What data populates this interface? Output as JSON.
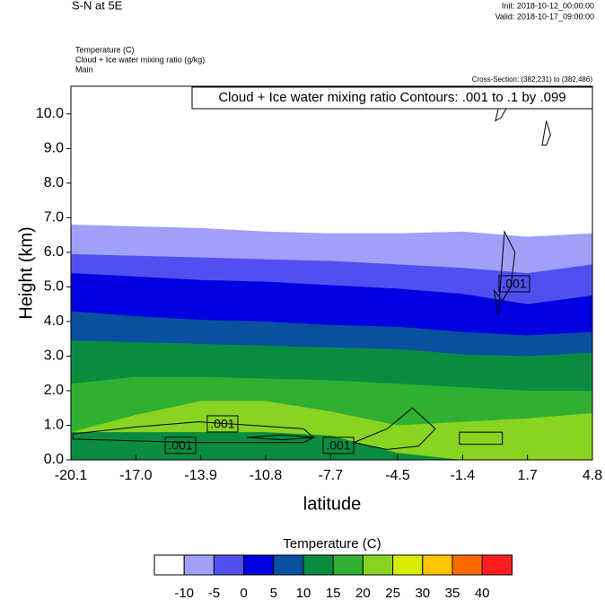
{
  "chart_data": {
    "type": "contour",
    "title": "S-N at 5E",
    "init": "Init: 2018-10-12_00:00:00",
    "valid": "Valid: 2018-10-17_09:00:00",
    "fields": [
      "Temperature   (C)",
      "Cloud + Ice water mixing ratio   (g/kg)",
      "Main"
    ],
    "cross_section": "Cross-Section: (382,231) to (382,486)",
    "contour_info": "Cloud + Ice water mixing ratio Contours: .001 to .1 by .099",
    "x_label": "latitude",
    "y_label": "Height (km)",
    "xlim": [
      -20.1,
      4.8
    ],
    "xticks": [
      -20.1,
      {
        "value": -17,
        "label": "-17.0"
      },
      -13.9,
      -10.8,
      -7.7,
      -4.5,
      -1.4,
      1.7,
      4.8
    ],
    "ylim": [
      0,
      10.8
    ],
    "yticks": [
      {
        "value": 0,
        "label": "0.0"
      },
      {
        "value": 1,
        "label": "1.0"
      },
      {
        "value": 2,
        "label": "2.0"
      },
      {
        "value": 3,
        "label": "3.0"
      },
      {
        "value": 4,
        "label": "4.0"
      },
      {
        "value": 5,
        "label": "5.0"
      },
      {
        "value": 6,
        "label": "6.0"
      },
      {
        "value": 7,
        "label": "7.0"
      },
      {
        "value": 8,
        "label": "8.0"
      },
      {
        "value": 9,
        "label": "9.0"
      },
      {
        "value": 10,
        "label": "10.0"
      }
    ],
    "x": [
      -20.1,
      -17,
      -13.9,
      -10.8,
      -7.7,
      -4.5,
      -1.4,
      1.7,
      4.8
    ],
    "regions": [
      {
        "color": "#a0a0f8",
        "top": [
          6.8,
          6.75,
          6.7,
          6.6,
          6.55,
          6.55,
          6.6,
          6.45,
          6.55
        ]
      },
      {
        "color": "#5050f0",
        "top": [
          5.95,
          5.9,
          5.85,
          5.8,
          5.75,
          5.65,
          5.55,
          5.4,
          5.65
        ]
      },
      {
        "color": "#0000e0",
        "top": [
          5.4,
          5.3,
          5.2,
          5.15,
          5.05,
          4.95,
          4.8,
          4.5,
          4.75
        ]
      },
      {
        "color": "#0a50a0",
        "top": [
          4.3,
          4.15,
          4.05,
          4.0,
          3.9,
          3.85,
          3.7,
          3.6,
          3.7
        ]
      },
      {
        "color": "#0a8c40",
        "top": [
          3.45,
          3.4,
          3.35,
          3.3,
          3.25,
          3.2,
          3.05,
          3.0,
          3.1
        ]
      },
      {
        "color": "#30b030",
        "top": [
          2.2,
          2.4,
          2.4,
          2.35,
          2.3,
          2.2,
          2.1,
          2.0,
          2.0
        ]
      },
      {
        "color": "#88d420",
        "top": [
          0.8,
          1.3,
          1.7,
          1.7,
          1.4,
          1.0,
          1.1,
          1.2,
          1.35
        ]
      },
      {
        "color": "#0a8c40",
        "top": [
          0.8,
          0.8,
          0.8,
          0.8,
          0.7,
          0.2,
          0,
          0,
          0
        ]
      }
    ],
    "contours": [
      {
        "x": [
          -20,
          -17,
          -14,
          -9,
          -8.5,
          -9,
          -14,
          -17,
          -20
        ],
        "y": [
          0.75,
          0.95,
          1.1,
          0.9,
          0.65,
          0.5,
          0.5,
          0.55,
          0.6
        ]
      },
      {
        "x": [
          -11.7,
          -10,
          -8.5,
          -10,
          -11.7
        ],
        "y": [
          0.65,
          0.72,
          0.65,
          0.58,
          0.65
        ]
      },
      {
        "x": [
          -6.6,
          -5,
          -3.8,
          -2.7,
          -3.5,
          -5,
          -6.6
        ],
        "y": [
          0.5,
          0.9,
          1.5,
          0.9,
          0.4,
          0.3,
          0.5
        ]
      },
      {
        "x": [
          -1.55,
          0.5,
          0.5,
          -1.55
        ],
        "y": [
          0.45,
          0.45,
          0.8,
          0.8
        ]
      },
      {
        "x": [
          0.3,
          0.6,
          1.1,
          0.9,
          0.5,
          0.1,
          0.3
        ],
        "y": [
          4.2,
          6.6,
          6.0,
          5.0,
          4.6,
          4.9,
          4.2
        ]
      },
      {
        "x": [
          0.17,
          0.45,
          0.73,
          0.45,
          0.17
        ],
        "y": [
          9.8,
          10.5,
          10.2,
          9.9,
          9.8
        ]
      },
      {
        "x": [
          2.4,
          2.6,
          2.8,
          2.6,
          2.4
        ],
        "y": [
          9.1,
          9.8,
          9.4,
          9.1,
          9.1
        ]
      }
    ],
    "contour_labels": [
      {
        "text": ".001",
        "x": -12.86,
        "y": 1.04
      },
      {
        "text": ".001",
        "x": -14.87,
        "y": 0.42
      },
      {
        "text": ".001",
        "x": -7.33,
        "y": 0.42
      },
      {
        "text": ".001",
        "x": 1.07,
        "y": 5.09
      }
    ],
    "colorbar": {
      "title": "Temperature  (C)",
      "levels": [
        -10,
        -5,
        0,
        5,
        10,
        15,
        20,
        25,
        30,
        35,
        40
      ],
      "colors": [
        "#ffffff",
        "#a0a0f8",
        "#5050f0",
        "#0000e0",
        "#0a50a0",
        "#0a8c40",
        "#30b030",
        "#88d420",
        "#d8ec00",
        "#ffc400",
        "#ff6a00",
        "#ff1c1c"
      ]
    }
  }
}
